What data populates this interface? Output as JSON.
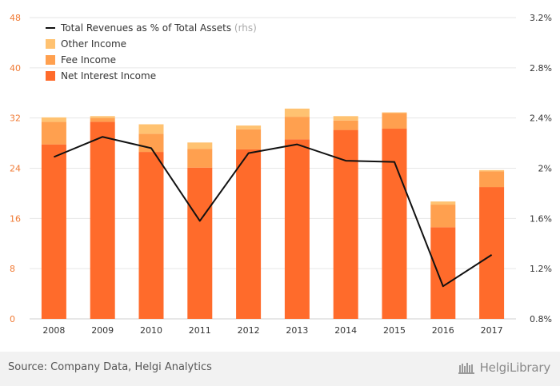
{
  "chart_data": {
    "type": "bar",
    "stacked": true,
    "categories": [
      "2008",
      "2009",
      "2010",
      "2011",
      "2012",
      "2013",
      "2014",
      "2015",
      "2016",
      "2017"
    ],
    "series": [
      {
        "name": "Net Interest Income",
        "color": "#ff6b2b",
        "values": [
          27.8,
          31.4,
          26.6,
          24.1,
          27.0,
          28.6,
          30.1,
          30.3,
          14.6,
          21.0
        ]
      },
      {
        "name": "Fee Income",
        "color": "#ffa04f",
        "values": [
          3.6,
          0.6,
          2.9,
          3.0,
          3.2,
          3.6,
          1.5,
          2.5,
          3.6,
          2.5
        ]
      },
      {
        "name": "Other Income",
        "color": "#ffc271",
        "values": [
          0.7,
          0.3,
          1.5,
          1.0,
          0.6,
          1.3,
          0.7,
          0.1,
          0.5,
          0.2
        ]
      }
    ],
    "line": {
      "name": "Total Revenues as % of Total Assets",
      "suffix": "(rhs)",
      "color": "#111111",
      "values": [
        2.09,
        2.25,
        2.16,
        1.58,
        2.12,
        2.19,
        2.06,
        2.05,
        1.06,
        1.31
      ]
    },
    "left_axis": {
      "ylim": [
        0,
        48
      ],
      "ticks": [
        "0",
        "8",
        "16",
        "24",
        "32",
        "40",
        "48"
      ],
      "color": "#f07a34"
    },
    "right_axis": {
      "ylim": [
        0.8,
        3.2
      ],
      "ticks": [
        "0.8%",
        "1.2%",
        "1.6%",
        "2%",
        "2.4%",
        "2.8%",
        "3.2%"
      ]
    },
    "legend": {
      "position": "top-left",
      "order": [
        "line",
        "Other Income",
        "Fee Income",
        "Net Interest Income"
      ]
    },
    "grid": true
  },
  "footer": {
    "source": "Source: Company Data, Helgi Analytics",
    "brand": "HelgiLibrary"
  }
}
